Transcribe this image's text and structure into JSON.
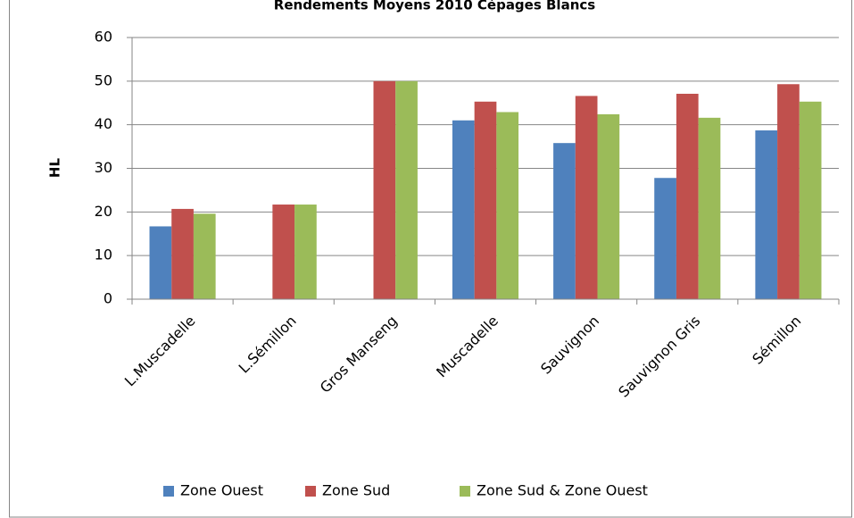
{
  "chart_data": {
    "type": "bar",
    "title": "Rendements Moyens 2010 Cépages Blancs",
    "y_label": "HL",
    "categories": [
      "L.Muscadelle",
      "L.Sémillon",
      "Gros Manseng",
      "Muscadelle",
      "Sauvignon",
      "Sauvignon Gris",
      "Sémillon"
    ],
    "series": [
      {
        "name": "Zone Ouest",
        "color": "#4f81bd",
        "values": [
          16.7,
          null,
          null,
          41,
          35.8,
          27.8,
          38.7
        ]
      },
      {
        "name": "Zone Sud",
        "color": "#c0504d",
        "values": [
          20.7,
          21.7,
          50,
          45.3,
          46.6,
          47.1,
          49.3
        ]
      },
      {
        "name": "Zone Sud & Zone Ouest",
        "color": "#9bbb59",
        "values": [
          19.6,
          21.7,
          50,
          42.9,
          42.4,
          41.6,
          45.3
        ]
      }
    ],
    "ylim": [
      0,
      60
    ],
    "yticks": [
      0,
      10,
      20,
      30,
      40,
      50,
      60
    ],
    "grid": true,
    "legend": "bottom"
  }
}
